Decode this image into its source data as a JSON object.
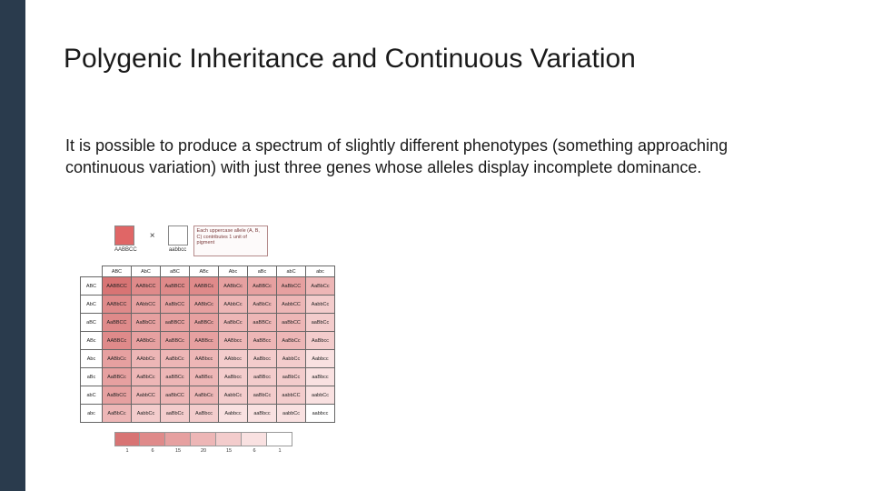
{
  "slide": {
    "left_bar_color": "#2a3b4d",
    "background_color": "#ffffff",
    "title": "Polygenic Inheritance and Continuous Variation",
    "title_color": "#1a1a1a",
    "title_fontsize": 30,
    "body": "It is possible to produce a spectrum of slightly different phenotypes (something approaching continuous variation) with just three genes whose alleles display incomplete dominance.",
    "body_fontsize": 18,
    "body_color": "#1a1a1a"
  },
  "figure": {
    "parents": {
      "p1": {
        "color": "#e06666",
        "label": "AABBCC"
      },
      "cross_symbol": "×",
      "p2": {
        "color": "#ffffff",
        "label": "aabbcc"
      },
      "caption": "Each uppercase allele (A, B, C) contributes 1 unit of pigment"
    },
    "punnett": {
      "col_headers": [
        "ABC",
        "AbC",
        "aBC",
        "ABc",
        "Abc",
        "aBc",
        "abC",
        "abc"
      ],
      "row_headers": [
        "ABC",
        "AbC",
        "aBC",
        "ABc",
        "Abc",
        "aBc",
        "abC",
        "abc"
      ],
      "shade_palette": [
        "#ffffff",
        "#f9e1e1",
        "#f3cccc",
        "#edb6b6",
        "#e6a0a0",
        "#df8a8a",
        "#d87474"
      ],
      "dominant_counts": [
        [
          6,
          5,
          5,
          5,
          4,
          4,
          4,
          3
        ],
        [
          5,
          4,
          4,
          4,
          3,
          3,
          3,
          2
        ],
        [
          5,
          4,
          4,
          4,
          3,
          3,
          3,
          2
        ],
        [
          5,
          4,
          4,
          4,
          3,
          3,
          3,
          2
        ],
        [
          4,
          3,
          3,
          3,
          2,
          2,
          2,
          1
        ],
        [
          4,
          3,
          3,
          3,
          2,
          2,
          2,
          1
        ],
        [
          4,
          3,
          3,
          3,
          2,
          2,
          2,
          1
        ],
        [
          3,
          2,
          2,
          2,
          1,
          1,
          1,
          0
        ]
      ],
      "genotype_labels": [
        [
          "AABBCC",
          "AABbCC",
          "AaBBCC",
          "AABBCc",
          "AABbCc",
          "AaBBCc",
          "AaBbCC",
          "AaBbCc"
        ],
        [
          "AABbCC",
          "AAbbCC",
          "AaBbCC",
          "AABbCc",
          "AAbbCc",
          "AaBbCc",
          "AabbCC",
          "AabbCc"
        ],
        [
          "AaBBCC",
          "AaBbCC",
          "aaBBCC",
          "AaBBCc",
          "AaBbCc",
          "aaBBCc",
          "aaBbCC",
          "aaBbCc"
        ],
        [
          "AABBCc",
          "AABbCc",
          "AaBBCc",
          "AABBcc",
          "AABbcc",
          "AaBBcc",
          "AaBbCc",
          "AaBbcc"
        ],
        [
          "AABbCc",
          "AAbbCc",
          "AaBbCc",
          "AABbcc",
          "AAbbcc",
          "AaBbcc",
          "AabbCc",
          "Aabbcc"
        ],
        [
          "AaBBCc",
          "AaBbCc",
          "aaBBCc",
          "AaBBcc",
          "AaBbcc",
          "aaBBcc",
          "aaBbCc",
          "aaBbcc"
        ],
        [
          "AaBbCC",
          "AabbCC",
          "aaBbCC",
          "AaBbCc",
          "AabbCc",
          "aaBbCc",
          "aabbCC",
          "aabbCc"
        ],
        [
          "AaBbCc",
          "AabbCc",
          "aaBbCc",
          "AaBbcc",
          "Aabbcc",
          "aaBbcc",
          "aabbCc",
          "aabbcc"
        ]
      ]
    },
    "gradient": {
      "colors": [
        "#d87474",
        "#df8a8a",
        "#e6a0a0",
        "#edb6b6",
        "#f3cccc",
        "#f9e1e1",
        "#ffffff"
      ],
      "labels": [
        "1",
        "6",
        "15",
        "20",
        "15",
        "6",
        "1"
      ]
    }
  }
}
